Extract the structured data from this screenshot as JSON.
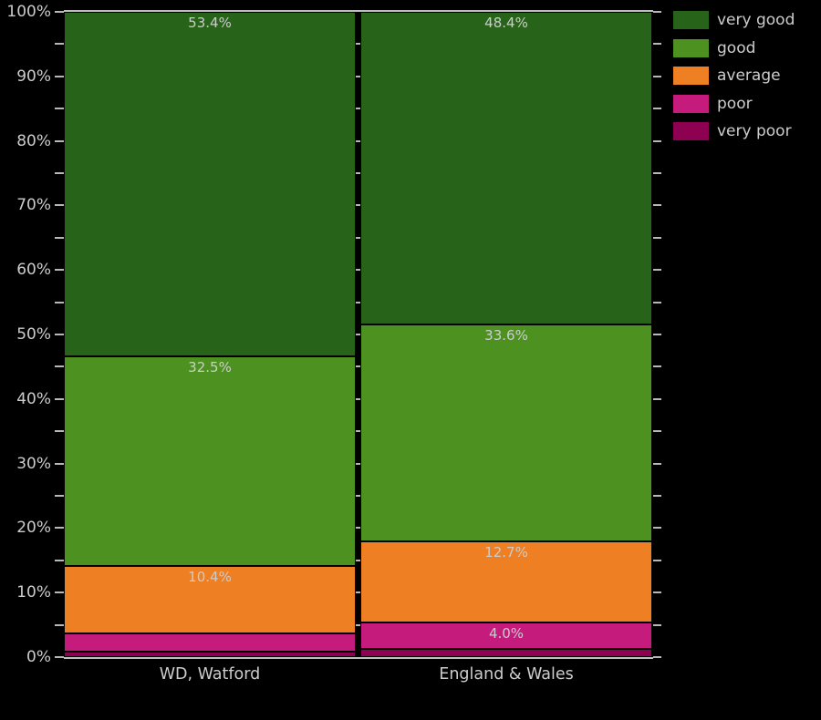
{
  "chart_data": {
    "type": "bar",
    "variant": "percent-stacked-columns",
    "title": "",
    "xlabel": "",
    "ylabel": "",
    "categories": [
      "WD, Watford",
      "England & Wales"
    ],
    "series": [
      {
        "name": "very good",
        "color": "#276419",
        "values": [
          53.4,
          48.4
        ]
      },
      {
        "name": "good",
        "color": "#4d9221",
        "values": [
          32.5,
          33.6
        ]
      },
      {
        "name": "average",
        "color": "#ee7f22",
        "values": [
          10.4,
          12.7
        ]
      },
      {
        "name": "poor",
        "color": "#c51b7d",
        "values": [
          2.8,
          4.0
        ]
      },
      {
        "name": "very poor",
        "color": "#8e0152",
        "values": [
          0.9,
          1.3
        ]
      }
    ],
    "ylim": [
      0,
      100
    ],
    "y_major_ticks": [
      0,
      10,
      20,
      30,
      40,
      50,
      60,
      70,
      80,
      90,
      100
    ],
    "y_major_tick_labels": [
      "0%",
      "10%",
      "20%",
      "30%",
      "40%",
      "50%",
      "60%",
      "70%",
      "80%",
      "90%",
      "100%"
    ],
    "y_minor_tick_step": 5,
    "grid": false,
    "legend_position": "top-right",
    "data_label_min_percent": 4.0,
    "data_label_suffix": "%",
    "colors": {
      "background": "#000000",
      "text": "#cccccc",
      "tick": "#b8b8b8",
      "spine": "#c0c0c0",
      "segment_edge": "#000000",
      "data_label": "#cccccc"
    }
  }
}
